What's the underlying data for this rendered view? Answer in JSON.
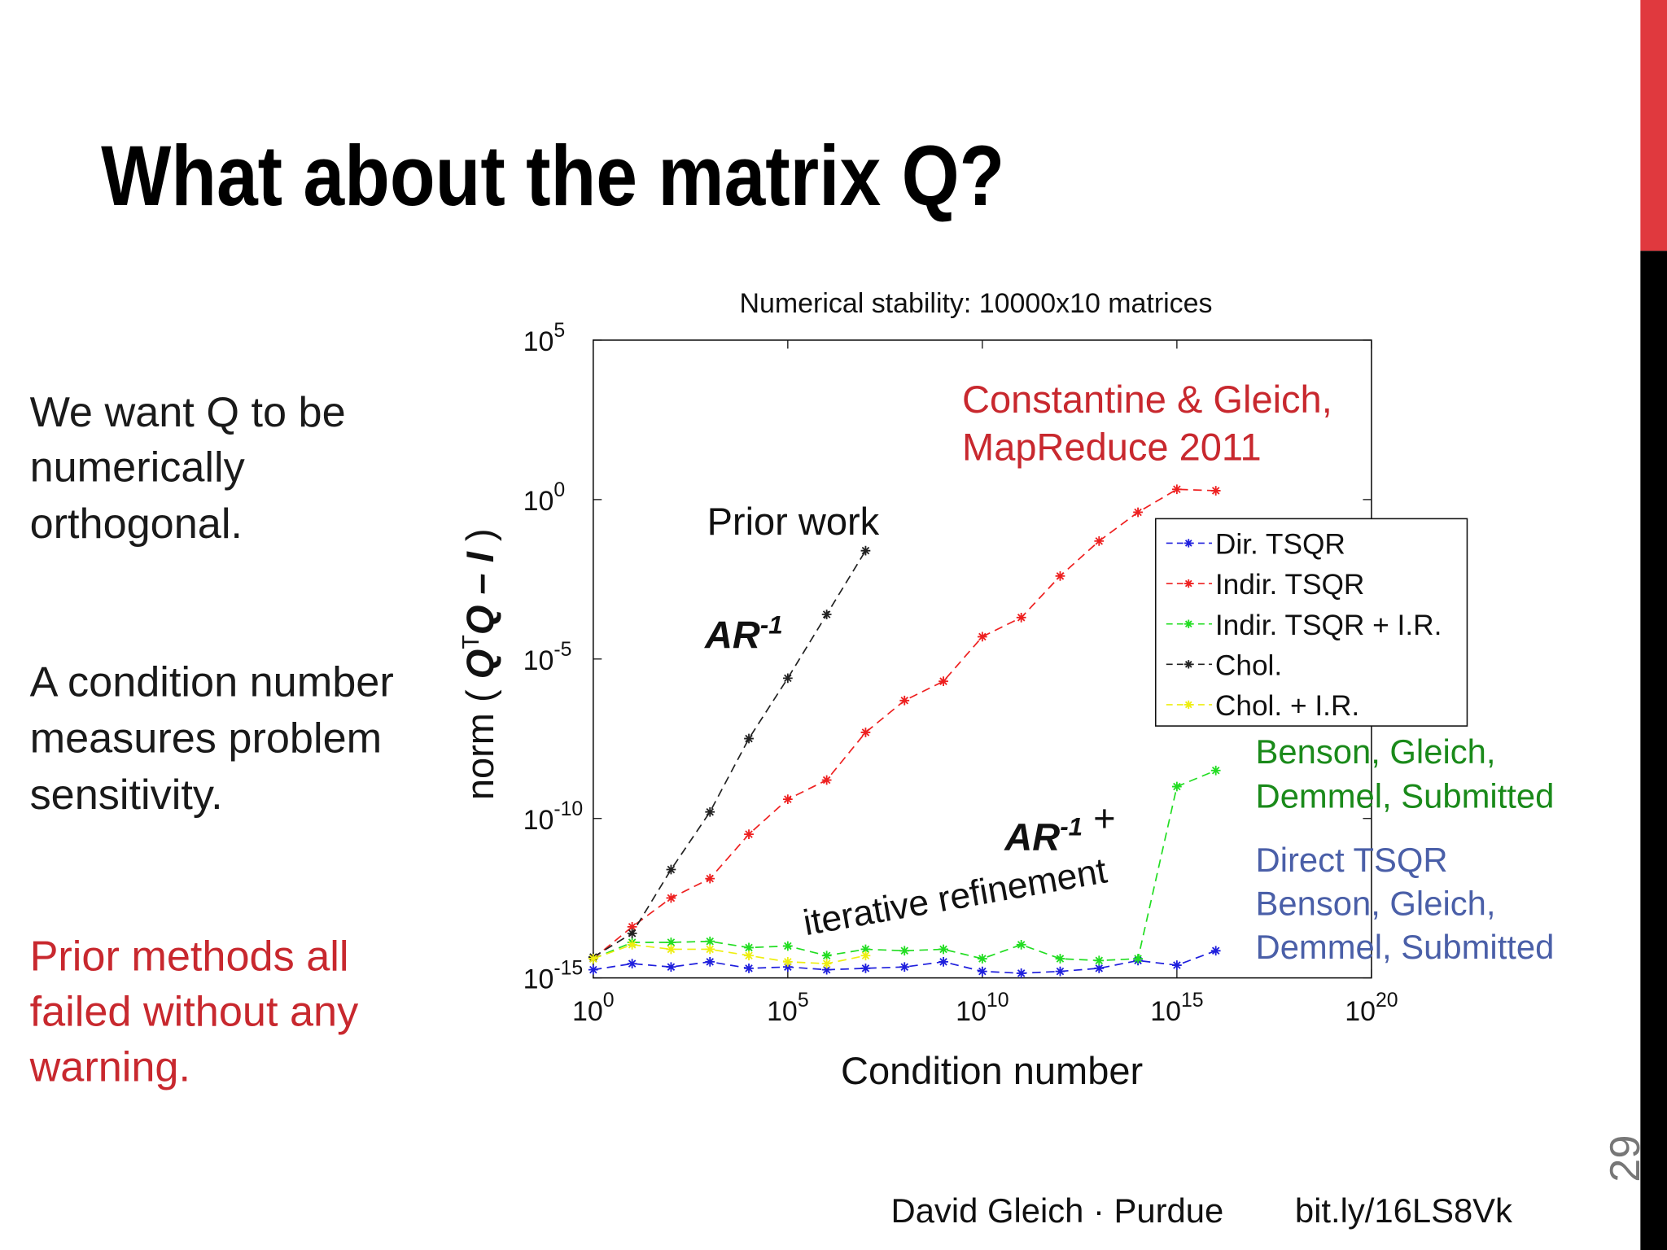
{
  "slide": {
    "title": "What about the matrix Q?",
    "bullets": [
      [
        "We want Q to be",
        "numerically",
        "orthogonal."
      ],
      [
        "A condition number",
        "measures problem",
        "sensitivity."
      ],
      [
        "Prior methods all",
        "failed without any",
        "warning."
      ]
    ],
    "footer_author": "David Gleich · Purdue",
    "footer_link": "bit.ly/16LS8Vk",
    "page_number": "29"
  },
  "chart_data": {
    "type": "line",
    "title": "Numerical stability: 10000x10 matrices",
    "x_label": "Condition number",
    "y_label": [
      "norm ( ",
      "Q",
      "T",
      "Q – I",
      " )"
    ],
    "xscale": "log",
    "yscale": "log",
    "xlim": [
      1,
      1e+20
    ],
    "ylim": [
      1e-15,
      100000.0
    ],
    "xticks": [
      {
        "value": 1,
        "label": "10^0"
      },
      {
        "value": 100000.0,
        "label": "10^5"
      },
      {
        "value": 10000000000.0,
        "label": "10^10"
      },
      {
        "value": 1000000000000000.0,
        "label": "10^15"
      },
      {
        "value": 1e+20,
        "label": "10^20"
      }
    ],
    "yticks": [
      {
        "value": 1e-15,
        "label": "10^-15"
      },
      {
        "value": 1e-10,
        "label": "10^-10"
      },
      {
        "value": 1e-05,
        "label": "10^-5"
      },
      {
        "value": 1,
        "label": "10^0"
      },
      {
        "value": 100000.0,
        "label": "10^5"
      }
    ],
    "x": [
      1,
      10,
      100,
      1000,
      10000.0,
      100000.0,
      1000000.0,
      10000000.0,
      100000000.0,
      1000000000.0,
      10000000000.0,
      100000000000.0,
      1000000000000.0,
      10000000000000.0,
      100000000000000.0,
      1000000000000000.0,
      1e+16
    ],
    "series": [
      {
        "name": "Dir. TSQR",
        "color": "#1f1fdd",
        "values": [
          1.8e-15,
          2.8e-15,
          2.2e-15,
          3.2e-15,
          2e-15,
          2.2e-15,
          1.8e-15,
          2e-15,
          2.2e-15,
          3.2e-15,
          1.6e-15,
          1.4e-15,
          1.6e-15,
          2e-15,
          3.5e-15,
          2.5e-15,
          7.1e-15
        ]
      },
      {
        "name": "Indir. TSQR",
        "color": "#ee2020",
        "values": [
          4e-15,
          4e-14,
          3.2e-13,
          1.3e-12,
          3.2e-11,
          4e-10,
          1.6e-09,
          5e-08,
          5e-07,
          2e-06,
          5e-05,
          0.0002,
          0.004,
          0.05,
          0.4,
          2.1,
          1.9
        ]
      },
      {
        "name": "Indir. TSQR + I.R.",
        "color": "#22dd22",
        "values": [
          4e-15,
          1.3e-14,
          1.3e-14,
          1.4e-14,
          8.9e-15,
          1e-14,
          5e-15,
          7.9e-15,
          7.1e-15,
          7.9e-15,
          4e-15,
          1.1e-14,
          4e-15,
          3.5e-15,
          4e-15,
          1e-09,
          3.2e-09
        ]
      },
      {
        "name": "Chol.",
        "color": "#222222",
        "values": [
          4.5e-15,
          2.5e-14,
          2.5e-12,
          1.6e-10,
          3.2e-08,
          2.5e-06,
          0.00025,
          0.025,
          null,
          null,
          null,
          null,
          null,
          null,
          null,
          null,
          null
        ]
      },
      {
        "name": "Chol. + I.R.",
        "color": "#eeee10",
        "values": [
          4e-15,
          1.1e-14,
          7.9e-15,
          7.9e-15,
          5e-15,
          3.2e-15,
          2.8e-15,
          5e-15,
          null,
          null,
          null,
          null,
          null,
          null,
          null,
          null,
          null
        ]
      }
    ],
    "annotations": {
      "constantine": [
        "Constantine & Gleich,",
        "MapReduce 2011"
      ],
      "prior_work": "Prior work",
      "ar_inv": [
        "AR",
        "-1"
      ],
      "ar_inv_ir": [
        "AR",
        "-1",
        " +"
      ],
      "iterative": "iterative refinement",
      "benson": [
        "Benson, Gleich,",
        "Demmel, Submitted"
      ],
      "direct": [
        "Direct TSQR",
        "Benson, Gleich,",
        "Demmel, Submitted"
      ]
    }
  }
}
